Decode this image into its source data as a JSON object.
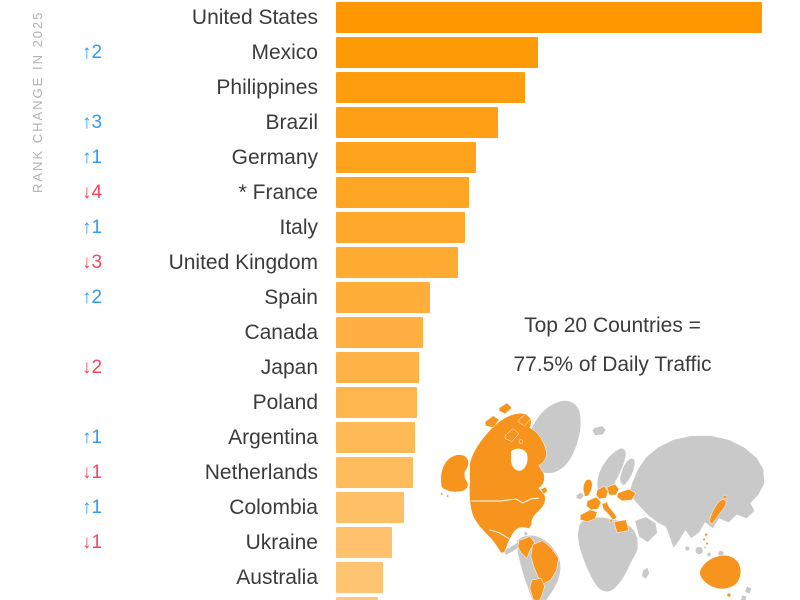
{
  "axis": {
    "label": "RANK CHANGE IN 2025"
  },
  "colors": {
    "up": "#2f9bf7",
    "down": "#f5455c",
    "label_text": "#3b3b3b",
    "axis_text": "#b2b2b2",
    "bar_gradient_start": "#ff9700",
    "bar_gradient_end": "#ffc779",
    "map_land": "#c9c9c9",
    "map_highlight": "#f7941d"
  },
  "annotation": {
    "line1": "Top 20 Countries =",
    "line2": "77.5% of Daily Traffic"
  },
  "chart_data": {
    "type": "bar",
    "orientation": "horizontal",
    "title": "Top 20 Countries = 77.5% of Daily Traffic",
    "value_axis_note": "no numeric axis shown; values are % of longest (United States) bar",
    "legend": "rank change arrows: blue = up, red = down",
    "layout": {
      "grid": false,
      "bars_clipped_below": true
    },
    "rows": [
      {
        "label": "United States",
        "rank_change": null,
        "relative_value": 100.0
      },
      {
        "label": "Mexico",
        "rank_change": {
          "direction": "up",
          "amount": 2
        },
        "relative_value": 47.4
      },
      {
        "label": "Philippines",
        "rank_change": null,
        "relative_value": 44.4
      },
      {
        "label": "Brazil",
        "rank_change": {
          "direction": "up",
          "amount": 3
        },
        "relative_value": 38.0
      },
      {
        "label": "Germany",
        "rank_change": {
          "direction": "up",
          "amount": 1
        },
        "relative_value": 32.9
      },
      {
        "label": "* France",
        "rank_change": {
          "direction": "down",
          "amount": 4
        },
        "relative_value": 31.2
      },
      {
        "label": "Italy",
        "rank_change": {
          "direction": "up",
          "amount": 1
        },
        "relative_value": 30.3
      },
      {
        "label": "United Kingdom",
        "rank_change": {
          "direction": "down",
          "amount": 3
        },
        "relative_value": 28.6
      },
      {
        "label": "Spain",
        "rank_change": {
          "direction": "up",
          "amount": 2
        },
        "relative_value": 22.1
      },
      {
        "label": "Canada",
        "rank_change": null,
        "relative_value": 20.4
      },
      {
        "label": "Japan",
        "rank_change": {
          "direction": "down",
          "amount": 2
        },
        "relative_value": 19.5
      },
      {
        "label": "Poland",
        "rank_change": null,
        "relative_value": 19.0
      },
      {
        "label": "Argentina",
        "rank_change": {
          "direction": "up",
          "amount": 1
        },
        "relative_value": 18.5
      },
      {
        "label": "Netherlands",
        "rank_change": {
          "direction": "down",
          "amount": 1
        },
        "relative_value": 18.1
      },
      {
        "label": "Colombia",
        "rank_change": {
          "direction": "up",
          "amount": 1
        },
        "relative_value": 16.0
      },
      {
        "label": "Ukraine",
        "rank_change": {
          "direction": "down",
          "amount": 1
        },
        "relative_value": 13.1
      },
      {
        "label": "Australia",
        "rank_change": null,
        "relative_value": 11.0
      },
      {
        "label": "",
        "rank_change": null,
        "relative_value": 9.9
      }
    ]
  },
  "map": {
    "highlighted_countries": [
      "Canada",
      "United States",
      "Mexico",
      "Colombia",
      "Brazil",
      "Argentina",
      "United Kingdom",
      "Spain",
      "France",
      "Netherlands",
      "Germany",
      "Poland",
      "Italy",
      "Ukraine",
      "Egypt",
      "Japan",
      "Philippines",
      "Australia"
    ]
  }
}
